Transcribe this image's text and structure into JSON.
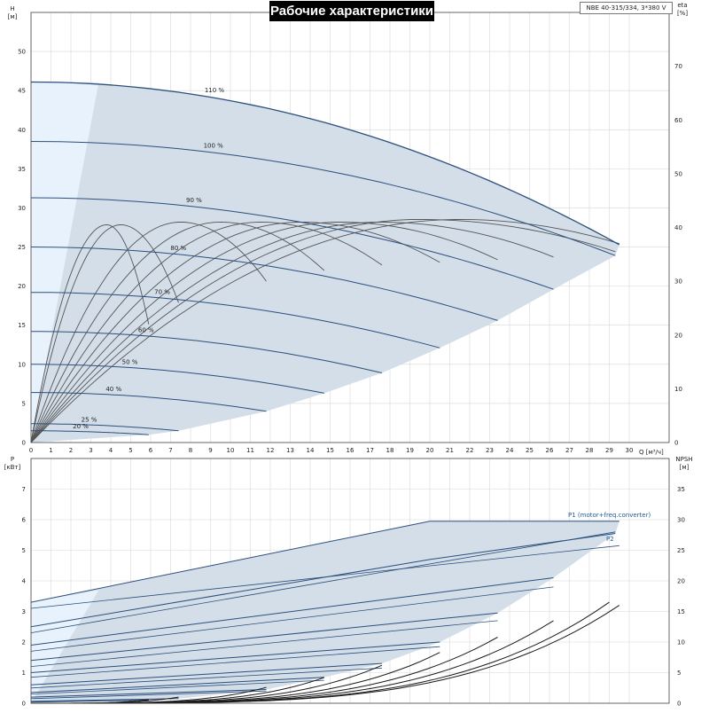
{
  "header": {
    "title": "Рабочие характеристики",
    "model": "NBE 40-315/334, 3*380 V"
  },
  "colors": {
    "envelope": "#d3dee9",
    "bep_zone": "#e8f2fc",
    "speed_curve": "#2c4f7c",
    "eff_curve": "#555555",
    "npsh_curve": "#1a1a1a",
    "grid": "#d7d7d7",
    "label": "#245b93"
  },
  "top_panel": {
    "left_unit_1": "H",
    "left_unit_2": "[м]",
    "right_unit_1": "eta",
    "right_unit_2": "[%]",
    "x_unit_label": "Q [м³/ч]",
    "left_ticks": [
      "0",
      "5",
      "10",
      "15",
      "20",
      "25",
      "30",
      "35",
      "40",
      "45",
      "50"
    ],
    "right_ticks": [
      "0",
      "10",
      "20",
      "30",
      "40",
      "50",
      "60",
      "70"
    ],
    "x_ticks": [
      "0",
      "1",
      "2",
      "3",
      "4",
      "5",
      "6",
      "7",
      "8",
      "9",
      "10",
      "11",
      "12",
      "13",
      "14",
      "15",
      "16",
      "17",
      "18",
      "19",
      "20",
      "21",
      "22",
      "23",
      "24",
      "25",
      "26",
      "27",
      "28",
      "29",
      "30"
    ]
  },
  "bottom_panel": {
    "left_unit_1": "P",
    "left_unit_2": "[кВт]",
    "right_unit_1": "NPSH",
    "right_unit_2": "[м]",
    "left_ticks": [
      "0",
      "1",
      "2",
      "3",
      "4",
      "5",
      "6",
      "7"
    ],
    "right_ticks": [
      "0",
      "5",
      "10",
      "15",
      "20",
      "25",
      "30",
      "35"
    ],
    "p1_label": "P1 (motor+freq.converter)",
    "p2_label": "P2"
  },
  "chart_data": [
    {
      "type": "line",
      "title": "Рабочие характеристики",
      "xlabel": "Q [м³/ч]",
      "ylabel": "H [м]",
      "y2label": "eta [%]",
      "xlim": [
        0,
        32
      ],
      "ylim": [
        0,
        55
      ],
      "y2lim": [
        0,
        80
      ],
      "grid": true,
      "head_series": [
        {
          "name": "110 %",
          "shutoff_h": 46.1,
          "q_max": 29.5,
          "h_at_max": 25.3
        },
        {
          "name": "100 %",
          "shutoff_h": 38.5,
          "q_max": 29.3,
          "h_at_max": 23.9
        },
        {
          "name": "90 %",
          "shutoff_h": 31.3,
          "q_max": 26.2,
          "h_at_max": 19.6
        },
        {
          "name": "80 %",
          "shutoff_h": 25.0,
          "q_max": 23.4,
          "h_at_max": 15.6
        },
        {
          "name": "70 %",
          "shutoff_h": 19.2,
          "q_max": 20.5,
          "h_at_max": 12.1
        },
        {
          "name": "60 %",
          "shutoff_h": 14.2,
          "q_max": 17.6,
          "h_at_max": 8.9
        },
        {
          "name": "50 %",
          "shutoff_h": 10.0,
          "q_max": 14.7,
          "h_at_max": 6.3
        },
        {
          "name": "40 %",
          "shutoff_h": 6.4,
          "q_max": 11.8,
          "h_at_max": 4.0
        },
        {
          "name": "25 %",
          "shutoff_h": 2.4,
          "q_max": 7.4,
          "h_at_max": 1.5
        },
        {
          "name": "20 %",
          "shutoff_h": 1.5,
          "q_max": 5.9,
          "h_at_max": 1.0
        }
      ],
      "efficiency_series": [
        {
          "speed": "110 %",
          "peak_eta": 41.5,
          "q_at_peak": 21.5,
          "q_end": 29.5,
          "eta_end": 37.0
        },
        {
          "speed": "100 %",
          "peak_eta": 41.5,
          "q_at_peak": 19.5,
          "q_end": 29.3,
          "eta_end": 35.5
        },
        {
          "speed": "90 %",
          "peak_eta": 41.0,
          "q_at_peak": 17.5,
          "q_end": 26.2,
          "eta_end": 34.5
        },
        {
          "speed": "80 %",
          "peak_eta": 41.0,
          "q_at_peak": 15.5,
          "q_end": 23.4,
          "eta_end": 34.0
        },
        {
          "speed": "70 %",
          "peak_eta": 41.0,
          "q_at_peak": 13.5,
          "q_end": 20.5,
          "eta_end": 33.5
        },
        {
          "speed": "60 %",
          "peak_eta": 41.0,
          "q_at_peak": 11.5,
          "q_end": 17.6,
          "eta_end": 33.0
        },
        {
          "speed": "50 %",
          "peak_eta": 41.0,
          "q_at_peak": 9.5,
          "q_end": 14.7,
          "eta_end": 32.0
        },
        {
          "speed": "40 %",
          "peak_eta": 41.0,
          "q_at_peak": 7.5,
          "q_end": 11.8,
          "eta_end": 30.0
        },
        {
          "speed": "25 %",
          "peak_eta": 40.5,
          "q_at_peak": 4.5,
          "q_end": 7.4,
          "eta_end": 26.0
        },
        {
          "speed": "20 %",
          "peak_eta": 40.5,
          "q_at_peak": 3.8,
          "q_end": 5.9,
          "eta_end": 22.0
        }
      ]
    },
    {
      "type": "line",
      "xlabel": "Q [м³/ч]",
      "ylabel": "P [кВт]",
      "y2label": "NPSH [м]",
      "xlim": [
        0,
        32
      ],
      "ylim": [
        0,
        7
      ],
      "y2lim": [
        0,
        35
      ],
      "grid": true,
      "power_p1_series": [
        {
          "speed": "110 %",
          "p_start": 3.3,
          "q_knee": 20.0,
          "p_knee": 5.95,
          "q_end": 29.5,
          "p_end": 5.95
        },
        {
          "speed": "100 %",
          "p_start": 2.5,
          "q_knee": 20.0,
          "p_knee": 4.7,
          "q_end": 29.3,
          "p_end": 5.55
        },
        {
          "speed": "90 %",
          "p_start": 1.9,
          "q_end": 26.2,
          "p_end": 4.1
        },
        {
          "speed": "80 %",
          "p_start": 1.4,
          "q_end": 23.4,
          "p_end": 2.95
        },
        {
          "speed": "70 %",
          "p_start": 1.0,
          "q_end": 20.5,
          "p_end": 2.0
        },
        {
          "speed": "60 %",
          "p_start": 0.6,
          "q_end": 17.6,
          "p_end": 1.3
        },
        {
          "speed": "50 %",
          "p_start": 0.35,
          "q_end": 14.7,
          "p_end": 0.85
        },
        {
          "speed": "40 %",
          "p_start": 0.2,
          "q_end": 11.8,
          "p_end": 0.45
        },
        {
          "speed": "25 %",
          "p_start": 0.06,
          "q_end": 7.4,
          "p_end": 0.15
        },
        {
          "speed": "20 %",
          "p_start": 0.04,
          "q_end": 5.9,
          "p_end": 0.1
        }
      ],
      "power_p2_series": [
        {
          "speed": "110 %",
          "p_start": 3.1,
          "q_end": 29.5,
          "p_end": 5.15
        },
        {
          "speed": "100 %",
          "p_start": 2.3,
          "q_end": 29.3,
          "p_end": 5.6
        },
        {
          "speed": "90 %",
          "p_start": 1.7,
          "q_end": 26.2,
          "p_end": 3.8
        },
        {
          "speed": "80 %",
          "p_start": 1.2,
          "q_end": 23.4,
          "p_end": 2.7
        },
        {
          "speed": "70 %",
          "p_start": 0.85,
          "q_end": 20.5,
          "p_end": 1.85
        },
        {
          "speed": "60 %",
          "p_start": 0.5,
          "q_end": 17.6,
          "p_end": 1.15
        },
        {
          "speed": "50 %",
          "p_start": 0.3,
          "q_end": 14.7,
          "p_end": 0.75
        },
        {
          "speed": "40 %",
          "p_start": 0.15,
          "q_end": 11.8,
          "p_end": 0.4
        }
      ],
      "npsh_series": [
        {
          "speed": "110 %",
          "q_end": 29.5,
          "npsh_end": 16.0
        },
        {
          "speed": "100 %",
          "q_end": 29.0,
          "npsh_end": 16.5
        },
        {
          "speed": "90 %",
          "q_end": 26.2,
          "npsh_end": 13.5
        },
        {
          "speed": "80 %",
          "q_end": 23.4,
          "npsh_end": 10.8
        },
        {
          "speed": "70 %",
          "q_end": 20.5,
          "npsh_end": 8.3
        },
        {
          "speed": "60 %",
          "q_end": 17.6,
          "npsh_end": 6.2
        },
        {
          "speed": "50 %",
          "q_end": 14.7,
          "npsh_end": 4.2
        },
        {
          "speed": "40 %",
          "q_end": 11.8,
          "npsh_end": 2.6
        },
        {
          "speed": "25 %",
          "q_end": 7.4,
          "npsh_end": 1.0
        },
        {
          "speed": "20 %",
          "q_end": 5.9,
          "npsh_end": 0.6
        }
      ]
    }
  ]
}
